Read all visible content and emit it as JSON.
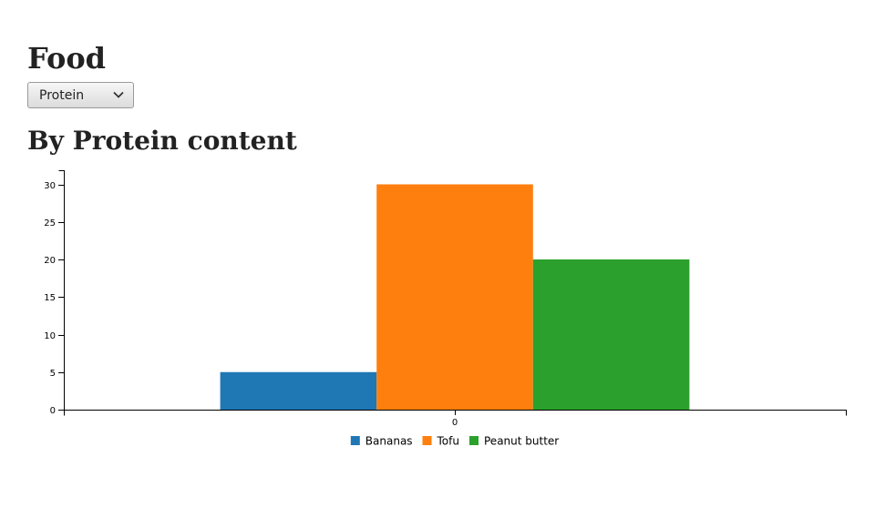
{
  "page": {
    "title": "Food"
  },
  "selector": {
    "selected": "Protein",
    "icon": "chevron-down-icon"
  },
  "chart_title": "By Protein content",
  "chart_data": {
    "type": "bar",
    "categories": [
      "0"
    ],
    "series": [
      {
        "name": "Bananas",
        "values": [
          5
        ],
        "color": "#1f77b4"
      },
      {
        "name": "Tofu",
        "values": [
          30
        ],
        "color": "#ff7f0e"
      },
      {
        "name": "Peanut butter",
        "values": [
          20
        ],
        "color": "#2ca02c"
      }
    ],
    "title": "By Protein content",
    "xlabel": "",
    "ylabel": "",
    "ylim": [
      0,
      32
    ],
    "yticks": [
      0,
      5,
      10,
      15,
      20,
      25,
      30
    ],
    "grid": false,
    "legend_position": "bottom"
  }
}
